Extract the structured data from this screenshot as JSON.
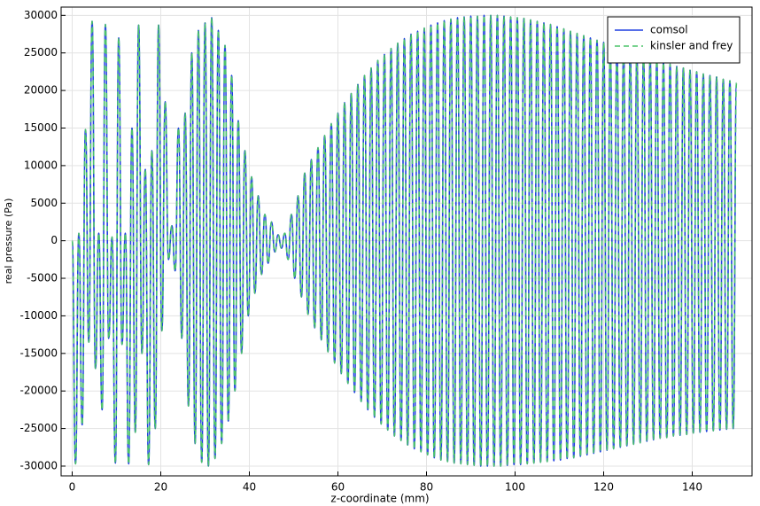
{
  "chart_data": {
    "type": "line",
    "xlabel": "z-coordinate (mm)",
    "ylabel": "real pressure (Pa)",
    "xlim": [
      -2.5,
      153.5
    ],
    "ylim": [
      -31300,
      31100
    ],
    "xticks": [
      0,
      20,
      40,
      60,
      80,
      100,
      120,
      140
    ],
    "yticks": [
      -30000,
      -25000,
      -20000,
      -15000,
      -10000,
      -5000,
      0,
      5000,
      10000,
      15000,
      20000,
      25000,
      30000
    ],
    "grid": true,
    "legend": "upper right",
    "x": [
      0,
      0.75,
      1.5,
      2.25,
      3,
      3.75,
      4.5,
      5.25,
      6,
      6.75,
      7.5,
      8.25,
      9,
      9.75,
      10.5,
      11.25,
      12,
      12.75,
      13.5,
      14.25,
      15,
      15.75,
      16.5,
      17.25,
      18,
      18.75,
      19.5,
      20.25,
      21,
      21.75,
      22.5,
      23.25,
      24,
      24.75,
      25.5,
      26.25,
      27,
      27.75,
      28.5,
      29.25,
      30,
      30.75,
      31.5,
      32.25,
      33,
      33.75,
      34.5,
      35.25,
      36,
      36.75,
      37.5,
      38.25,
      39,
      39.75,
      40.5,
      41.25,
      42,
      42.75,
      43.5,
      44.25,
      45,
      45.75,
      46.5,
      47.25,
      48,
      48.75,
      49.5,
      50.25,
      51,
      51.75,
      52.5,
      53.25,
      54,
      54.75,
      55.5,
      56.25,
      57,
      57.75,
      58.5,
      59.25,
      60,
      60.75,
      61.5,
      62.25,
      63,
      63.75,
      64.5,
      65.25,
      66,
      66.75,
      67.5,
      68.25,
      69,
      69.75,
      70.5,
      71.25,
      72,
      72.75,
      73.5,
      74.25,
      75,
      75.75,
      76.5,
      77.25,
      78,
      78.75,
      79.5,
      80.25,
      81,
      81.75,
      82.5,
      83.25,
      84,
      84.75,
      85.5,
      86.25,
      87,
      87.75,
      88.5,
      89.25,
      90,
      90.75,
      91.5,
      92.25,
      93,
      93.75,
      94.5,
      95.25,
      96,
      96.75,
      97.5,
      98.25,
      99,
      99.75,
      100.5,
      101.25,
      102,
      102.75,
      103.5,
      104.25,
      105,
      105.75,
      106.5,
      107.25,
      108,
      108.75,
      109.5,
      110.25,
      111,
      111.75,
      112.5,
      113.25,
      114,
      114.75,
      115.5,
      116.25,
      117,
      117.75,
      118.5,
      119.25,
      120,
      120.75,
      121.5,
      122.25,
      123,
      123.75,
      124.5,
      125.25,
      126,
      126.75,
      127.5,
      128.25,
      129,
      129.75,
      130.5,
      131.25,
      132,
      132.75,
      133.5,
      134.25,
      135,
      135.75,
      136.5,
      137.25,
      138,
      138.75,
      139.5,
      140.25,
      141,
      141.75,
      142.5,
      143.25,
      144,
      144.75,
      145.5,
      146.25,
      147,
      147.75,
      148.5,
      149.25,
      150
    ],
    "series": [
      {
        "name": "comsol",
        "color": "#1f3fe0",
        "dash": false,
        "values": [
          0,
          -29700,
          1000,
          -24500,
          14800,
          -13500,
          29200,
          -17000,
          1000,
          -22500,
          28800,
          -13000,
          500,
          -29600,
          27000,
          -13800,
          1000,
          -29700,
          15000,
          -25500,
          28700,
          -15000,
          9500,
          -29800,
          12000,
          -25000,
          28700,
          -12000,
          18500,
          -2500,
          2000,
          -4000,
          15000,
          -13000,
          17000,
          -22000,
          25000,
          -27000,
          28000,
          -29500,
          29000,
          -30000,
          29700,
          -29000,
          28000,
          -27000,
          26000,
          -24000,
          22000,
          -20000,
          16000,
          -15000,
          12000,
          -10000,
          8500,
          -7000,
          6000,
          -4500,
          3500,
          -3000,
          2500,
          -1500,
          800,
          -1000,
          1000,
          -2500,
          3500,
          -5000,
          6000,
          -7500,
          9000,
          -9800,
          10800,
          -11600,
          12400,
          -13200,
          14000,
          -14800,
          15600,
          -16300,
          17000,
          -17700,
          18400,
          -19000,
          19600,
          -20200,
          20800,
          -21400,
          22000,
          -22500,
          23000,
          -23500,
          24000,
          -24400,
          24800,
          -25200,
          25600,
          -26000,
          26300,
          -26600,
          26900,
          -27200,
          27500,
          -27700,
          27900,
          -28100,
          28300,
          -28500,
          28700,
          -28900,
          29000,
          -29200,
          29300,
          -29400,
          29500,
          -29600,
          29700,
          -29700,
          29800,
          -29800,
          29900,
          -29900,
          29900,
          -30000,
          30000,
          -30000,
          30000,
          -30000,
          30000,
          -30000,
          29900,
          -29900,
          29800,
          -29800,
          29700,
          -29800,
          29600,
          -29700,
          29400,
          -29600,
          29200,
          -29500,
          29000,
          -29400,
          28800,
          -29300,
          28500,
          -29200,
          28200,
          -29000,
          27900,
          -28900,
          27600,
          -28700,
          27300,
          -28500,
          27000,
          -28300,
          26700,
          -28100,
          26400,
          -27900,
          26100,
          -27700,
          25800,
          -27500,
          25500,
          -27300,
          25200,
          -27100,
          24900,
          -26900,
          24600,
          -26700,
          24300,
          -26500,
          24000,
          -26300,
          23700,
          -26200,
          23500,
          -26000,
          23200,
          -25900,
          23000,
          -25800,
          22700,
          -25600,
          22500,
          -25500,
          22200,
          -25400,
          22000,
          -25300,
          21800,
          -25200,
          21500,
          -25100,
          21300,
          -25000,
          21000
        ]
      },
      {
        "name": "kinsler and frey",
        "color": "#4cc36a",
        "dash": true,
        "values": [
          0,
          -29700,
          1000,
          -24500,
          14800,
          -13500,
          29200,
          -17000,
          1000,
          -22500,
          28800,
          -13000,
          500,
          -29600,
          27000,
          -13800,
          1000,
          -29700,
          15000,
          -25500,
          28700,
          -15000,
          9500,
          -29800,
          12000,
          -25000,
          28700,
          -12000,
          18500,
          -2500,
          2000,
          -4000,
          15000,
          -13000,
          17000,
          -22000,
          25000,
          -27000,
          28000,
          -29500,
          29000,
          -30000,
          29700,
          -29000,
          28000,
          -27000,
          26000,
          -24000,
          22000,
          -20000,
          16000,
          -15000,
          12000,
          -10000,
          8500,
          -7000,
          6000,
          -4500,
          3500,
          -3000,
          2500,
          -1500,
          800,
          -1000,
          1000,
          -2500,
          3500,
          -5000,
          6000,
          -7500,
          9000,
          -9800,
          10800,
          -11600,
          12400,
          -13200,
          14000,
          -14800,
          15600,
          -16300,
          17000,
          -17700,
          18400,
          -19000,
          19600,
          -20200,
          20800,
          -21400,
          22000,
          -22500,
          23000,
          -23500,
          24000,
          -24400,
          24800,
          -25200,
          25600,
          -26000,
          26300,
          -26600,
          26900,
          -27200,
          27500,
          -27700,
          27900,
          -28100,
          28300,
          -28500,
          28700,
          -28900,
          29000,
          -29200,
          29300,
          -29400,
          29500,
          -29600,
          29700,
          -29700,
          29800,
          -29800,
          29900,
          -29900,
          29900,
          -30000,
          30000,
          -30000,
          30000,
          -30000,
          30000,
          -30000,
          29900,
          -29900,
          29800,
          -29800,
          29700,
          -29800,
          29600,
          -29700,
          29400,
          -29600,
          29200,
          -29500,
          29000,
          -29400,
          28800,
          -29300,
          28500,
          -29200,
          28200,
          -29000,
          27900,
          -28900,
          27600,
          -28700,
          27300,
          -28500,
          27000,
          -28300,
          26700,
          -28100,
          26400,
          -27900,
          26100,
          -27700,
          25800,
          -27500,
          25500,
          -27300,
          25200,
          -27100,
          24900,
          -26900,
          24600,
          -26700,
          24300,
          -26500,
          24000,
          -26300,
          23700,
          -26200,
          23500,
          -26000,
          23200,
          -25900,
          23000,
          -25800,
          22700,
          -25600,
          22500,
          -25500,
          22200,
          -25400,
          22000,
          -25300,
          21800,
          -25200,
          21500,
          -25100,
          21300,
          -25000,
          21000
        ]
      }
    ]
  }
}
